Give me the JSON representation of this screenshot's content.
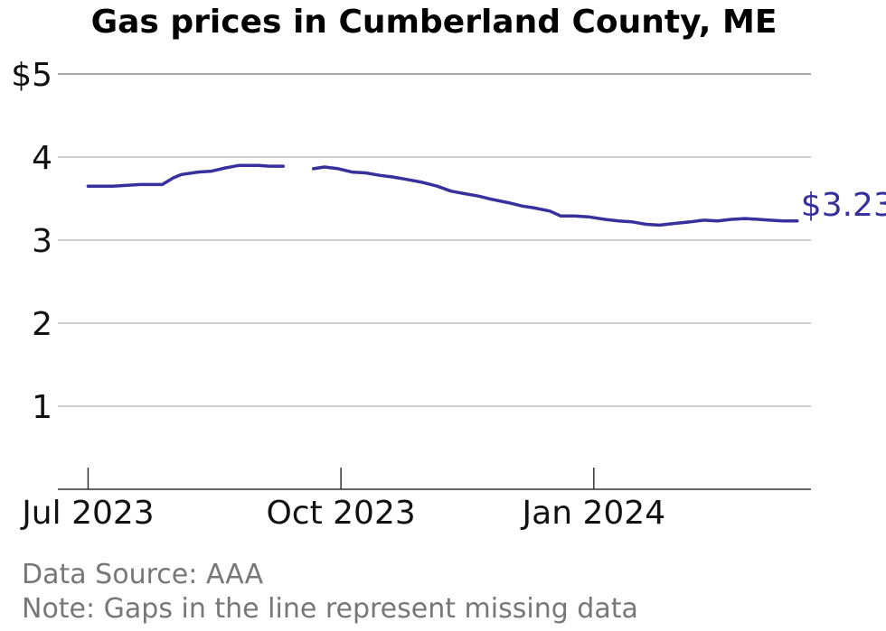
{
  "chart_data": {
    "type": "line",
    "title": "Gas prices in Cumberland County, ME",
    "xlabel": "",
    "ylabel": "",
    "ylim": [
      0,
      5
    ],
    "xlim": [
      "2023-06-20",
      "2024-03-20"
    ],
    "y_ticks": [
      {
        "value": 1,
        "label": "1"
      },
      {
        "value": 2,
        "label": "2"
      },
      {
        "value": 3,
        "label": "3"
      },
      {
        "value": 4,
        "label": "4"
      },
      {
        "value": 5,
        "label": "$5"
      }
    ],
    "x_ticks": [
      {
        "date": "2023-07-01",
        "label": "Jul 2023"
      },
      {
        "date": "2023-10-01",
        "label": "Oct 2023"
      },
      {
        "date": "2024-01-01",
        "label": "Jan 2024"
      }
    ],
    "grid": true,
    "line_color": "#36319c",
    "end_label": "$3.23",
    "segments": [
      [
        {
          "x": "2023-07-01",
          "y": 3.65
        },
        {
          "x": "2023-07-10",
          "y": 3.65
        },
        {
          "x": "2023-07-20",
          "y": 3.67
        },
        {
          "x": "2023-07-28",
          "y": 3.67
        },
        {
          "x": "2023-08-01",
          "y": 3.75
        },
        {
          "x": "2023-08-04",
          "y": 3.79
        },
        {
          "x": "2023-08-10",
          "y": 3.82
        },
        {
          "x": "2023-08-15",
          "y": 3.83
        },
        {
          "x": "2023-08-20",
          "y": 3.87
        },
        {
          "x": "2023-08-25",
          "y": 3.9
        },
        {
          "x": "2023-09-01",
          "y": 3.9
        },
        {
          "x": "2023-09-05",
          "y": 3.89
        },
        {
          "x": "2023-09-10",
          "y": 3.89
        }
      ],
      [
        {
          "x": "2023-09-21",
          "y": 3.86
        },
        {
          "x": "2023-09-25",
          "y": 3.88
        },
        {
          "x": "2023-09-30",
          "y": 3.86
        },
        {
          "x": "2023-10-05",
          "y": 3.82
        },
        {
          "x": "2023-10-10",
          "y": 3.81
        },
        {
          "x": "2023-10-15",
          "y": 3.78
        },
        {
          "x": "2023-10-20",
          "y": 3.76
        },
        {
          "x": "2023-10-25",
          "y": 3.73
        },
        {
          "x": "2023-10-30",
          "y": 3.7
        },
        {
          "x": "2023-11-05",
          "y": 3.65
        },
        {
          "x": "2023-11-10",
          "y": 3.59
        },
        {
          "x": "2023-11-15",
          "y": 3.56
        },
        {
          "x": "2023-11-20",
          "y": 3.53
        },
        {
          "x": "2023-11-25",
          "y": 3.49
        },
        {
          "x": "2023-12-01",
          "y": 3.45
        },
        {
          "x": "2023-12-06",
          "y": 3.41
        },
        {
          "x": "2023-12-10",
          "y": 3.39
        },
        {
          "x": "2023-12-16",
          "y": 3.35
        },
        {
          "x": "2023-12-20",
          "y": 3.29
        },
        {
          "x": "2023-12-25",
          "y": 3.29
        },
        {
          "x": "2023-12-30",
          "y": 3.28
        },
        {
          "x": "2024-01-05",
          "y": 3.25
        },
        {
          "x": "2024-01-10",
          "y": 3.23
        },
        {
          "x": "2024-01-15",
          "y": 3.22
        },
        {
          "x": "2024-01-20",
          "y": 3.19
        },
        {
          "x": "2024-01-25",
          "y": 3.18
        },
        {
          "x": "2024-01-30",
          "y": 3.2
        },
        {
          "x": "2024-02-05",
          "y": 3.22
        },
        {
          "x": "2024-02-10",
          "y": 3.24
        },
        {
          "x": "2024-02-15",
          "y": 3.23
        },
        {
          "x": "2024-02-20",
          "y": 3.25
        },
        {
          "x": "2024-02-25",
          "y": 3.26
        },
        {
          "x": "2024-03-01",
          "y": 3.25
        },
        {
          "x": "2024-03-05",
          "y": 3.24
        },
        {
          "x": "2024-03-10",
          "y": 3.23
        },
        {
          "x": "2024-03-15",
          "y": 3.23
        }
      ]
    ]
  },
  "footer": {
    "source": "Data Source: AAA",
    "note": "Note: Gaps in the line represent missing data"
  }
}
